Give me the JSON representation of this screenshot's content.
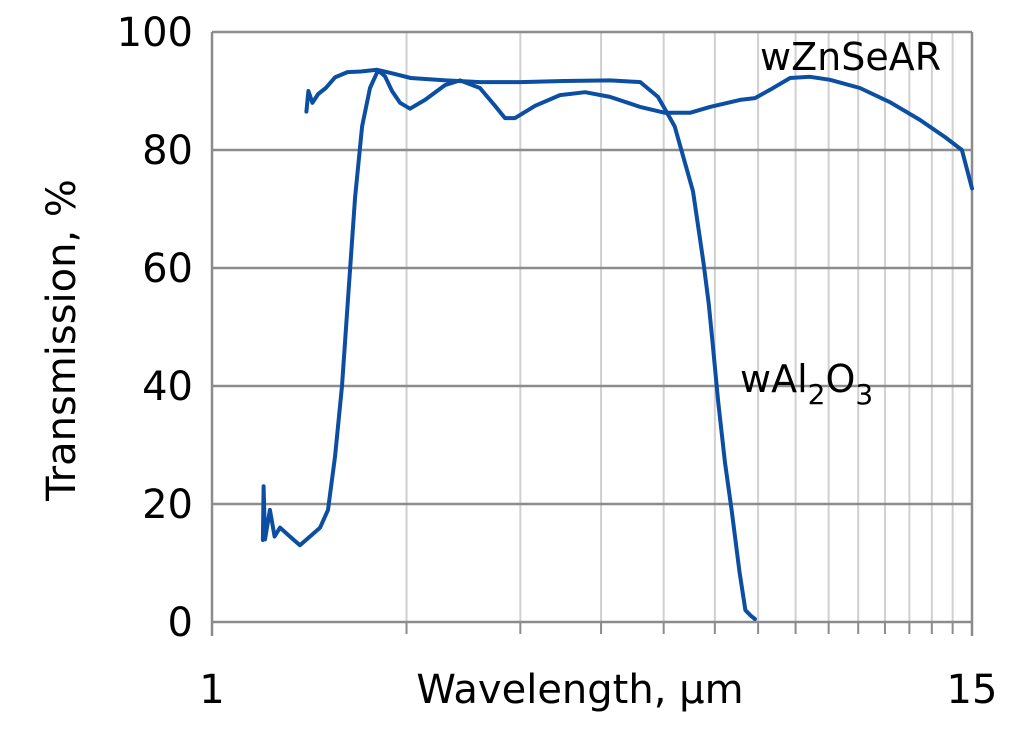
{
  "chart_data": {
    "type": "line",
    "title": "",
    "xlabel": "Wavelength, µm",
    "ylabel": "Transmission, %",
    "xscale": "log",
    "xlim": [
      1,
      15
    ],
    "ylim": [
      0,
      100
    ],
    "x_tick_labels": [
      "1",
      "15"
    ],
    "x_minor_ticks": [
      2,
      3,
      4,
      5,
      6,
      7,
      8,
      9,
      10,
      11,
      12,
      13,
      14
    ],
    "y_ticks": [
      0,
      20,
      40,
      60,
      80,
      100
    ],
    "grid": true,
    "legend": "inline labels",
    "line_color": "#0b4ea2",
    "series": [
      {
        "name": "wAl2O3",
        "label_main": "wAl",
        "label_sub1": "2",
        "label_mid": "O",
        "label_sub2": "3",
        "points": [
          [
            1.199,
            13.9
          ],
          [
            1.202,
            23.0
          ],
          [
            1.208,
            14.0
          ],
          [
            1.229,
            19.0
          ],
          [
            1.25,
            14.5
          ],
          [
            1.274,
            16.0
          ],
          [
            1.32,
            14.5
          ],
          [
            1.368,
            13.0
          ],
          [
            1.418,
            14.5
          ],
          [
            1.47,
            16.0
          ],
          [
            1.512,
            19.0
          ],
          [
            1.55,
            28.0
          ],
          [
            1.589,
            40.0
          ],
          [
            1.624,
            55.0
          ],
          [
            1.665,
            72.0
          ],
          [
            1.707,
            84.0
          ],
          [
            1.756,
            90.5
          ],
          [
            1.807,
            93.5
          ],
          [
            1.852,
            92.5
          ],
          [
            1.899,
            90.0
          ],
          [
            1.954,
            88.0
          ],
          [
            2.025,
            87.0
          ],
          [
            2.136,
            88.5
          ],
          [
            2.294,
            91.0
          ],
          [
            2.42,
            91.8
          ],
          [
            2.598,
            90.5
          ],
          [
            2.741,
            87.5
          ],
          [
            2.841,
            85.4
          ],
          [
            2.944,
            85.4
          ],
          [
            3.162,
            87.5
          ],
          [
            3.456,
            89.3
          ],
          [
            3.779,
            89.8
          ],
          [
            4.13,
            89.0
          ],
          [
            4.597,
            87.3
          ],
          [
            5.024,
            86.3
          ],
          [
            5.492,
            86.3
          ],
          [
            5.897,
            87.3
          ],
          [
            6.564,
            88.5
          ],
          [
            6.924,
            88.8
          ],
          [
            7.302,
            90.2
          ],
          [
            7.844,
            92.2
          ],
          [
            8.422,
            92.4
          ],
          [
            9.045,
            91.9
          ],
          [
            10.06,
            90.5
          ],
          [
            11.2,
            88.1
          ],
          [
            12.46,
            85.1
          ],
          [
            13.62,
            82.2
          ],
          [
            14.47,
            80.0
          ],
          [
            15.0,
            73.5
          ]
        ]
      },
      {
        "name": "wZnSeAR",
        "label": "wZnSeAR",
        "points": [
          [
            1.4,
            86.5
          ],
          [
            1.41,
            90.0
          ],
          [
            1.43,
            88.0
          ],
          [
            1.46,
            89.5
          ],
          [
            1.5,
            90.5
          ],
          [
            1.55,
            92.3
          ],
          [
            1.62,
            93.2
          ],
          [
            1.7,
            93.3
          ],
          [
            1.8,
            93.6
          ],
          [
            1.9,
            93.0
          ],
          [
            2.03,
            92.2
          ],
          [
            2.3,
            91.8
          ],
          [
            2.6,
            91.5
          ],
          [
            3.0,
            91.5
          ],
          [
            3.5,
            91.7
          ],
          [
            4.13,
            91.8
          ],
          [
            4.6,
            91.5
          ],
          [
            4.9,
            89.0
          ],
          [
            5.2,
            84.0
          ],
          [
            5.55,
            73.0
          ],
          [
            5.76,
            61.0
          ],
          [
            5.87,
            54.0
          ],
          [
            5.95,
            47.5
          ],
          [
            6.07,
            37.5
          ],
          [
            6.22,
            27.0
          ],
          [
            6.37,
            19.0
          ],
          [
            6.55,
            8.5
          ],
          [
            6.69,
            2.0
          ],
          [
            6.83,
            1.0
          ],
          [
            6.92,
            0.5
          ]
        ]
      }
    ]
  }
}
